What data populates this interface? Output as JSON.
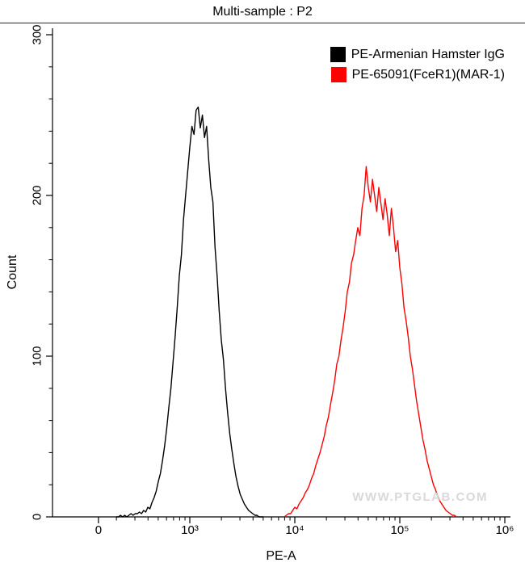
{
  "chart_data": {
    "type": "line",
    "subtype": "flow-cytometry-histogram",
    "title": "Multi-sample : P2",
    "xlabel": "PE-A",
    "ylabel": "Count",
    "x_scale": "log10",
    "x_unit_note": "series points are [log10(PE-A), count]",
    "ylim": [
      0,
      300
    ],
    "grid": false,
    "legend_position": "top-right-inside",
    "watermark": "WWW.PTGLAB.COM",
    "x_ticks": [
      {
        "label": "0",
        "log": 2.13
      },
      {
        "label": "10³",
        "log": 3
      },
      {
        "label": "10⁴",
        "log": 4
      },
      {
        "label": "10⁵",
        "log": 5
      },
      {
        "label": "10⁶",
        "log": 6
      }
    ],
    "y_ticks": [
      {
        "label": "0",
        "value": 0
      },
      {
        "label": "100",
        "value": 100
      },
      {
        "label": "200",
        "value": 200
      },
      {
        "label": "300",
        "value": 300
      }
    ],
    "series": [
      {
        "name": "PE-Armenian Hamster IgG",
        "color": "#000000",
        "peak_count": 255,
        "peak_x_log10": 3.08,
        "points": [
          [
            2.3,
            0
          ],
          [
            2.32,
            0
          ],
          [
            2.34,
            1
          ],
          [
            2.36,
            0
          ],
          [
            2.38,
            1
          ],
          [
            2.4,
            0
          ],
          [
            2.42,
            1
          ],
          [
            2.44,
            2
          ],
          [
            2.46,
            1
          ],
          [
            2.48,
            2
          ],
          [
            2.5,
            2
          ],
          [
            2.52,
            3
          ],
          [
            2.54,
            2
          ],
          [
            2.56,
            4
          ],
          [
            2.58,
            3
          ],
          [
            2.6,
            6
          ],
          [
            2.62,
            5
          ],
          [
            2.64,
            9
          ],
          [
            2.66,
            12
          ],
          [
            2.68,
            16
          ],
          [
            2.7,
            22
          ],
          [
            2.72,
            27
          ],
          [
            2.74,
            35
          ],
          [
            2.76,
            44
          ],
          [
            2.78,
            55
          ],
          [
            2.8,
            68
          ],
          [
            2.82,
            80
          ],
          [
            2.84,
            96
          ],
          [
            2.86,
            112
          ],
          [
            2.88,
            130
          ],
          [
            2.9,
            150
          ],
          [
            2.92,
            163
          ],
          [
            2.94,
            185
          ],
          [
            2.96,
            200
          ],
          [
            2.98,
            215
          ],
          [
            3.0,
            230
          ],
          [
            3.02,
            243
          ],
          [
            3.04,
            238
          ],
          [
            3.06,
            253
          ],
          [
            3.08,
            255
          ],
          [
            3.1,
            242
          ],
          [
            3.12,
            250
          ],
          [
            3.14,
            236
          ],
          [
            3.16,
            243
          ],
          [
            3.18,
            222
          ],
          [
            3.2,
            205
          ],
          [
            3.22,
            196
          ],
          [
            3.24,
            168
          ],
          [
            3.26,
            150
          ],
          [
            3.28,
            128
          ],
          [
            3.3,
            110
          ],
          [
            3.32,
            98
          ],
          [
            3.34,
            80
          ],
          [
            3.36,
            65
          ],
          [
            3.38,
            52
          ],
          [
            3.4,
            42
          ],
          [
            3.42,
            33
          ],
          [
            3.44,
            25
          ],
          [
            3.46,
            19
          ],
          [
            3.48,
            14
          ],
          [
            3.5,
            11
          ],
          [
            3.52,
            8
          ],
          [
            3.54,
            6
          ],
          [
            3.56,
            4
          ],
          [
            3.58,
            3
          ],
          [
            3.6,
            2
          ],
          [
            3.62,
            1
          ],
          [
            3.64,
            1
          ],
          [
            3.66,
            0
          ],
          [
            3.68,
            0
          ],
          [
            3.7,
            0
          ]
        ]
      },
      {
        "name": "PE-65091(FceR1)(MAR-1)",
        "color": "#ff0000",
        "peak_count": 218,
        "peak_x_log10": 4.68,
        "points": [
          [
            3.9,
            0
          ],
          [
            3.92,
            1
          ],
          [
            3.94,
            2
          ],
          [
            3.96,
            2
          ],
          [
            3.98,
            4
          ],
          [
            4.0,
            6
          ],
          [
            4.02,
            5
          ],
          [
            4.04,
            8
          ],
          [
            4.06,
            10
          ],
          [
            4.08,
            12
          ],
          [
            4.1,
            15
          ],
          [
            4.12,
            17
          ],
          [
            4.14,
            20
          ],
          [
            4.16,
            24
          ],
          [
            4.18,
            27
          ],
          [
            4.2,
            32
          ],
          [
            4.22,
            36
          ],
          [
            4.24,
            40
          ],
          [
            4.26,
            45
          ],
          [
            4.28,
            50
          ],
          [
            4.3,
            57
          ],
          [
            4.32,
            62
          ],
          [
            4.34,
            70
          ],
          [
            4.36,
            77
          ],
          [
            4.38,
            85
          ],
          [
            4.4,
            95
          ],
          [
            4.42,
            100
          ],
          [
            4.44,
            110
          ],
          [
            4.46,
            118
          ],
          [
            4.48,
            128
          ],
          [
            4.5,
            140
          ],
          [
            4.52,
            146
          ],
          [
            4.54,
            158
          ],
          [
            4.56,
            163
          ],
          [
            4.58,
            172
          ],
          [
            4.6,
            180
          ],
          [
            4.62,
            175
          ],
          [
            4.64,
            192
          ],
          [
            4.66,
            200
          ],
          [
            4.68,
            218
          ],
          [
            4.7,
            205
          ],
          [
            4.72,
            196
          ],
          [
            4.74,
            210
          ],
          [
            4.76,
            200
          ],
          [
            4.78,
            190
          ],
          [
            4.8,
            205
          ],
          [
            4.82,
            195
          ],
          [
            4.84,
            185
          ],
          [
            4.86,
            198
          ],
          [
            4.88,
            188
          ],
          [
            4.9,
            175
          ],
          [
            4.92,
            192
          ],
          [
            4.94,
            180
          ],
          [
            4.96,
            165
          ],
          [
            4.98,
            172
          ],
          [
            5.0,
            155
          ],
          [
            5.02,
            145
          ],
          [
            5.04,
            130
          ],
          [
            5.06,
            122
          ],
          [
            5.08,
            112
          ],
          [
            5.1,
            100
          ],
          [
            5.12,
            92
          ],
          [
            5.14,
            82
          ],
          [
            5.16,
            72
          ],
          [
            5.18,
            64
          ],
          [
            5.2,
            56
          ],
          [
            5.22,
            48
          ],
          [
            5.24,
            42
          ],
          [
            5.26,
            35
          ],
          [
            5.28,
            30
          ],
          [
            5.3,
            25
          ],
          [
            5.32,
            20
          ],
          [
            5.34,
            17
          ],
          [
            5.36,
            13
          ],
          [
            5.38,
            10
          ],
          [
            5.4,
            8
          ],
          [
            5.42,
            6
          ],
          [
            5.44,
            4
          ],
          [
            5.46,
            3
          ],
          [
            5.48,
            2
          ],
          [
            5.5,
            1
          ],
          [
            5.52,
            1
          ],
          [
            5.54,
            0
          ]
        ]
      }
    ]
  }
}
